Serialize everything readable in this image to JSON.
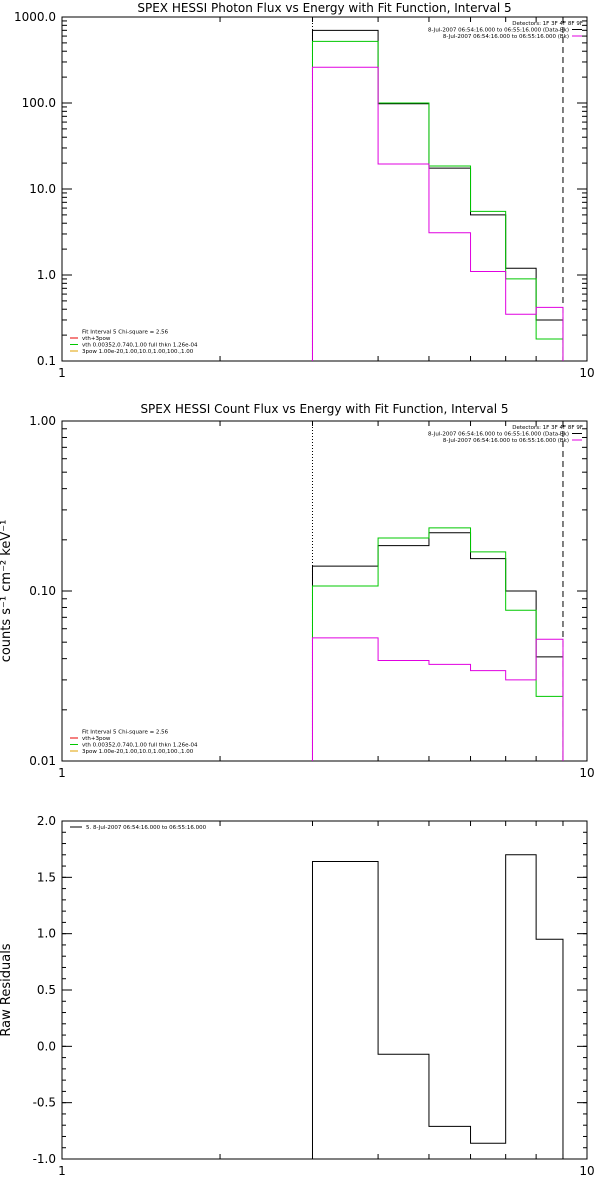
{
  "charts": [
    {
      "type": "line",
      "title": "SPEX HESSI Photon Flux vs Energy with Fit Function, Interval 5",
      "xlabel": "",
      "ylabel": "",
      "xlim": [
        1,
        10
      ],
      "ylim": [
        0.1,
        1000
      ],
      "xscale": "log",
      "yscale": "log",
      "x_ticks": [
        1,
        10
      ],
      "x_tick_labels": [
        "1",
        "10"
      ],
      "y_ticks": [
        0.1,
        1,
        10,
        100,
        1000
      ],
      "y_tick_labels": [
        "0.1",
        "1.0",
        "10.0",
        "100.0",
        "1000.0"
      ],
      "bin_edges": [
        3,
        4,
        5,
        6,
        7,
        8,
        9
      ],
      "series": [
        {
          "name": "",
          "color": "#000000",
          "values": [
            700,
            98,
            17.5,
            5.0,
            1.2,
            0.3
          ]
        },
        {
          "name": "",
          "color": "#00c800",
          "values": [
            520,
            100,
            18.5,
            5.5,
            0.9,
            0.18
          ]
        },
        {
          "name": "",
          "color": "#e000e0",
          "values": [
            260,
            19.5,
            3.1,
            1.1,
            0.35,
            0.42
          ]
        }
      ],
      "vlines": [
        {
          "x": 3,
          "style": "dotted"
        },
        {
          "x": 9,
          "style": "dashed"
        }
      ],
      "legend_top": [
        {
          "text": "Detectors: 1F 3F 4F 8F 9F",
          "color": ""
        },
        {
          "text": "8-Jul-2007 06:54:16.000 to 06:55:16.000 (Data-Bk)",
          "color": "#000000"
        },
        {
          "text": "8-Jul-2007 06:54:16.000 to 06:55:16.000 (Bk)",
          "color": "#e000e0"
        }
      ],
      "legend_bottom": [
        {
          "text": "Fit Interval 5   Chi-square = 2.56",
          "color": ""
        },
        {
          "text": "vth+3pow",
          "color": "#e80000"
        },
        {
          "text": "vth 0.00352,0.740,1.00  full thkn 1.26e-04",
          "color": "#00c800"
        },
        {
          "text": "3pow 1.00e-20,1.00,10.0,1.00,100.,1.00",
          "color": "#e0a000"
        }
      ]
    },
    {
      "type": "line",
      "title": "SPEX HESSI Count Flux vs Energy with Fit Function, Interval 5",
      "xlabel": "",
      "ylabel": "counts s⁻¹ cm⁻² keV⁻¹",
      "xlim": [
        1,
        10
      ],
      "ylim": [
        0.01,
        1
      ],
      "xscale": "log",
      "yscale": "log",
      "x_ticks": [
        1,
        10
      ],
      "x_tick_labels": [
        "1",
        "10"
      ],
      "y_ticks": [
        0.01,
        0.1,
        1
      ],
      "y_tick_labels": [
        "0.01",
        "0.10",
        "1.00"
      ],
      "bin_edges": [
        3,
        4,
        5,
        6,
        7,
        8,
        9
      ],
      "series": [
        {
          "name": "",
          "color": "#000000",
          "values": [
            0.14,
            0.185,
            0.22,
            0.155,
            0.1,
            0.041
          ]
        },
        {
          "name": "",
          "color": "#00c800",
          "values": [
            0.107,
            0.205,
            0.235,
            0.17,
            0.077,
            0.024
          ]
        },
        {
          "name": "",
          "color": "#e000e0",
          "values": [
            0.053,
            0.039,
            0.037,
            0.034,
            0.03,
            0.052
          ]
        }
      ],
      "vlines": [
        {
          "x": 3,
          "style": "dotted"
        },
        {
          "x": 9,
          "style": "dashed"
        }
      ],
      "legend_top": [
        {
          "text": "Detectors: 1F 3F 4F 8F 9F",
          "color": ""
        },
        {
          "text": "8-Jul-2007 06:54:16.000 to 06:55:16.000 (Data-Bk)",
          "color": "#000000"
        },
        {
          "text": "8-Jul-2007 06:54:16.000 to 06:55:16.000 (Bk)",
          "color": "#e000e0"
        }
      ],
      "legend_bottom": [
        {
          "text": "Fit Interval 5   Chi-square = 2.56",
          "color": ""
        },
        {
          "text": "vth+3pow",
          "color": "#e80000"
        },
        {
          "text": "vth 0.00352,0.740,1.00  full thkn 1.26e-04",
          "color": "#00c800"
        },
        {
          "text": "3pow 1.00e-20,1.00,10.0,1.00,100.,1.00",
          "color": "#e0a000"
        }
      ]
    },
    {
      "type": "line",
      "title": "",
      "xlabel": "",
      "ylabel": "Raw Residuals",
      "xlim": [
        1,
        10
      ],
      "ylim": [
        -1.0,
        2.0
      ],
      "xscale": "log",
      "yscale": "linear",
      "x_ticks": [
        1,
        10
      ],
      "x_tick_labels": [
        "1",
        "10"
      ],
      "y_ticks": [
        -1.0,
        -0.5,
        0.0,
        0.5,
        1.0,
        1.5,
        2.0
      ],
      "y_tick_labels": [
        "-1.0",
        "-0.5",
        "0.0",
        "0.5",
        "1.0",
        "1.5",
        "2.0"
      ],
      "bin_edges": [
        3,
        4,
        5,
        6,
        7,
        8,
        9
      ],
      "series": [
        {
          "name": "",
          "color": "#000000",
          "values": [
            1.64,
            -0.07,
            -0.71,
            -0.86,
            1.7,
            0.95
          ]
        }
      ],
      "vlines": [],
      "legend_top": [
        {
          "text": "5.  8-Jul-2007 06:54:16.000 to 06:55:16.000",
          "color": "#000000"
        }
      ],
      "legend_bottom": []
    }
  ]
}
